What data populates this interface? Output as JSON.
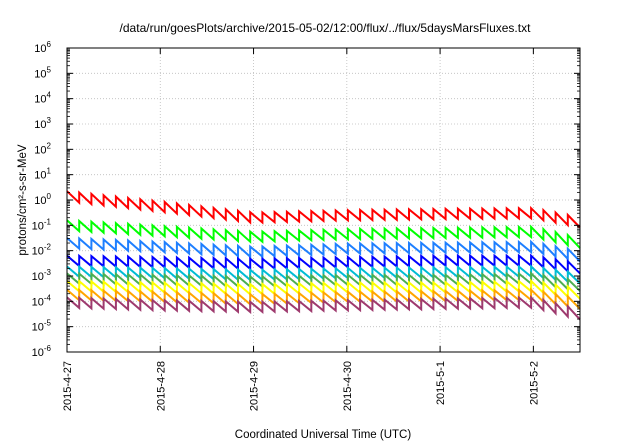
{
  "chart_data": {
    "type": "line",
    "title": "/data/run/goesPlots/archive/2015-05-02/12:00/flux/../flux/5daysMarsFluxes.txt",
    "xlabel": "Coordinated Universal Time (UTC)",
    "ylabel": "protons/cm²-s-sr-MeV",
    "y_scale": "log",
    "ylim": [
      1e-06,
      1000000.0
    ],
    "xlim": [
      "2015-04-27T00:00",
      "2015-05-02T12:00"
    ],
    "x_ticks": [
      "2015-4-27",
      "2015-4-28",
      "2015-4-29",
      "2015-4-30",
      "2015-5-1",
      "2015-5-2"
    ],
    "y_ticks": [
      {
        "base": "10",
        "exp": "6"
      },
      {
        "base": "10",
        "exp": "5"
      },
      {
        "base": "10",
        "exp": "4"
      },
      {
        "base": "10",
        "exp": "3"
      },
      {
        "base": "10",
        "exp": "2"
      },
      {
        "base": "10",
        "exp": "1"
      },
      {
        "base": "10",
        "exp": "0"
      },
      {
        "base": "10",
        "exp": "-1"
      },
      {
        "base": "10",
        "exp": "-2"
      },
      {
        "base": "10",
        "exp": "-3"
      },
      {
        "base": "10",
        "exp": "-4"
      },
      {
        "base": "10",
        "exp": "-5"
      },
      {
        "base": "10",
        "exp": "-6"
      }
    ],
    "grid": true,
    "legend": "none",
    "series_style": "sawtooth (periodic sharp rise followed by gradual decay)",
    "series": [
      {
        "color": "#ff0000",
        "x": [
          "2015-04-27",
          "2015-04-28",
          "2015-04-29",
          "2015-04-30",
          "2015-05-01",
          "2015-05-02",
          "2015-05-02T12:00"
        ],
        "values": [
          1.4,
          0.55,
          0.2,
          0.25,
          0.28,
          0.3,
          0.13
        ]
      },
      {
        "color": "#00ff00",
        "x": [
          "2015-04-27",
          "2015-04-28",
          "2015-04-29",
          "2015-04-30",
          "2015-05-01",
          "2015-05-02",
          "2015-05-02T12:00"
        ],
        "values": [
          0.1,
          0.06,
          0.035,
          0.045,
          0.05,
          0.055,
          0.02
        ]
      },
      {
        "color": "#1e7fff",
        "x": [
          "2015-04-27",
          "2015-04-28",
          "2015-04-29",
          "2015-04-30",
          "2015-05-01",
          "2015-05-02",
          "2015-05-02T12:00"
        ],
        "values": [
          0.02,
          0.014,
          0.009,
          0.012,
          0.013,
          0.014,
          0.006
        ]
      },
      {
        "color": "#0000ff",
        "x": [
          "2015-04-27",
          "2015-04-28",
          "2015-04-29",
          "2015-04-30",
          "2015-05-01",
          "2015-05-02",
          "2015-05-02T12:00"
        ],
        "values": [
          0.004,
          0.0035,
          0.003,
          0.0035,
          0.004,
          0.004,
          0.002
        ]
      },
      {
        "color": "#00bcd4",
        "x": [
          "2015-04-27",
          "2015-04-28",
          "2015-04-29",
          "2015-04-30",
          "2015-05-01",
          "2015-05-02",
          "2015-05-02T12:00"
        ],
        "values": [
          0.0015,
          0.0013,
          0.0011,
          0.0013,
          0.0014,
          0.0015,
          0.0008
        ]
      },
      {
        "color": "#4caf50",
        "x": [
          "2015-04-27",
          "2015-04-28",
          "2015-04-29",
          "2015-04-30",
          "2015-05-01",
          "2015-05-02",
          "2015-05-02T12:00"
        ],
        "values": [
          0.0008,
          0.0007,
          0.0006,
          0.0007,
          0.0007,
          0.0008,
          0.0004
        ]
      },
      {
        "color": "#ffff00",
        "x": [
          "2015-04-27",
          "2015-04-28",
          "2015-04-29",
          "2015-04-30",
          "2015-05-01",
          "2015-05-02",
          "2015-05-02T12:00"
        ],
        "values": [
          0.0004,
          0.00035,
          0.0003,
          0.00035,
          0.00035,
          0.0004,
          0.0002
        ]
      },
      {
        "color": "#ffa500",
        "x": [
          "2015-04-27",
          "2015-04-28",
          "2015-04-29",
          "2015-04-30",
          "2015-05-01",
          "2015-05-02",
          "2015-05-02T12:00"
        ],
        "values": [
          0.00018,
          0.00015,
          0.00012,
          0.00015,
          0.00016,
          0.00018,
          8e-05
        ]
      },
      {
        "color": "#9e3a6e",
        "x": [
          "2015-04-27",
          "2015-04-28",
          "2015-04-29",
          "2015-04-30",
          "2015-05-01",
          "2015-05-02",
          "2015-05-02T12:00"
        ],
        "values": [
          9e-05,
          7e-05,
          6e-05,
          7e-05,
          8e-05,
          9e-05,
          3e-05
        ]
      }
    ]
  }
}
